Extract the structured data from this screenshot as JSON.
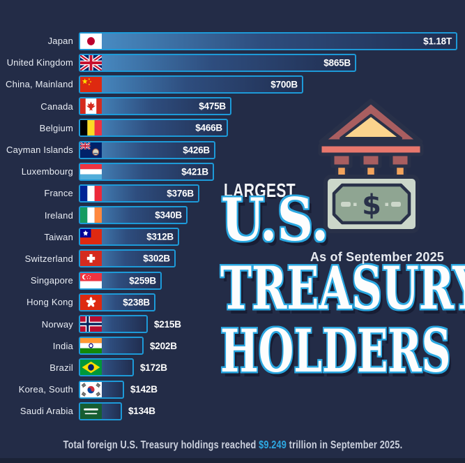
{
  "colors": {
    "background": "#232c47",
    "accent": "#2ea9e3",
    "bar_border": "#1d9ad8",
    "grad_1": "#4b93cb",
    "grad_2": "#2e4d7e",
    "grad_3": "#212e50",
    "title_outline": "#2aa7e0",
    "label_text": "#e9edf4",
    "value_text": "#ffffff",
    "asof_text": "#e8ebf1",
    "footer_text": "#ccd1de",
    "bottom_strip": "#1b2337",
    "ic_outline": "#293149",
    "ic_roof": "#a95e60",
    "ic_pediment": "#fbd48d",
    "ic_beam": "#e8776d",
    "ic_shaft": "#f2a35c",
    "ic_bill": "#ccd7ca",
    "ic_bill_inner": "#8fa592"
  },
  "title": {
    "kicker": "LARGEST",
    "line1": "U.S.",
    "line2": "TREASURY",
    "line3": "HOLDERS",
    "as_of": "As of September 2025"
  },
  "footer": {
    "prefix": "Total foreign U.S. Treasury holdings reached ",
    "highlight": "$9.249",
    "suffix": " trillion in September 2025."
  },
  "chart_data": {
    "type": "bar",
    "orientation": "horizontal",
    "title": "LARGEST U.S. TREASURY HOLDERS",
    "subtitle": "As of September 2025",
    "unit": "USD billions",
    "xlim": [
      0,
      1180
    ],
    "grid": false,
    "legend": false,
    "categories": [
      "Japan",
      "United Kingdom",
      "China, Mainland",
      "Canada",
      "Belgium",
      "Cayman Islands",
      "Luxembourg",
      "France",
      "Ireland",
      "Taiwan",
      "Switzerland",
      "Singapore",
      "Hong Kong",
      "Norway",
      "India",
      "Brazil",
      "Korea, South",
      "Saudi Arabia"
    ],
    "values": [
      1180,
      865,
      700,
      475,
      466,
      426,
      421,
      376,
      340,
      312,
      302,
      259,
      238,
      215,
      202,
      172,
      142,
      134
    ],
    "value_labels": [
      "$1.18T",
      "$865B",
      "$700B",
      "$475B",
      "$466B",
      "$426B",
      "$421B",
      "$376B",
      "$340B",
      "$312B",
      "$302B",
      "$259B",
      "$238B",
      "$215B",
      "$202B",
      "$172B",
      "$142B",
      "$134B"
    ],
    "note": "Total foreign U.S. Treasury holdings reached $9.249 trillion in September 2025."
  },
  "flags": [
    {
      "kind": "disc",
      "colors": [
        "#ffffff",
        "#bc002d"
      ]
    },
    {
      "kind": "unionjack",
      "colors": [
        "#012169",
        "#ffffff",
        "#C8102E"
      ]
    },
    {
      "kind": "stars",
      "colors": [
        "#de2910",
        "#ffde00"
      ]
    },
    {
      "kind": "maple",
      "colors": [
        "#ffffff",
        "#d52b1e"
      ]
    },
    {
      "kind": "stripesV",
      "colors": [
        "#000000",
        "#FDDA24",
        "#EF3340"
      ]
    },
    {
      "kind": "cayman",
      "colors": [
        "#012169",
        "#ffffff",
        "#C8102E",
        "#d8d3bd"
      ]
    },
    {
      "kind": "stripesH",
      "colors": [
        "#EF3340",
        "#ffffff",
        "#51ADDA"
      ]
    },
    {
      "kind": "stripesV",
      "colors": [
        "#002395",
        "#ffffff",
        "#ED2939"
      ]
    },
    {
      "kind": "stripesV",
      "colors": [
        "#169B62",
        "#ffffff",
        "#FF883E"
      ]
    },
    {
      "kind": "cantonsun",
      "colors": [
        "#de2910",
        "#000095",
        "#ffffff"
      ]
    },
    {
      "kind": "cross",
      "colors": [
        "#d52b1e",
        "#ffffff"
      ]
    },
    {
      "kind": "singapore",
      "colors": [
        "#EF3340",
        "#ffffff"
      ]
    },
    {
      "kind": "flower",
      "colors": [
        "#de2910",
        "#ffffff"
      ]
    },
    {
      "kind": "nordic",
      "colors": [
        "#BA0C2F",
        "#ffffff",
        "#00205B"
      ]
    },
    {
      "kind": "india",
      "colors": [
        "#FF9933",
        "#ffffff",
        "#138808",
        "#000080"
      ]
    },
    {
      "kind": "brazil",
      "colors": [
        "#009739",
        "#FEDD00",
        "#012169"
      ]
    },
    {
      "kind": "korea",
      "colors": [
        "#ffffff",
        "#CD2E3A",
        "#0047A0",
        "#1a1a1a"
      ]
    },
    {
      "kind": "saudi",
      "colors": [
        "#165d31",
        "#ffffff"
      ]
    }
  ]
}
